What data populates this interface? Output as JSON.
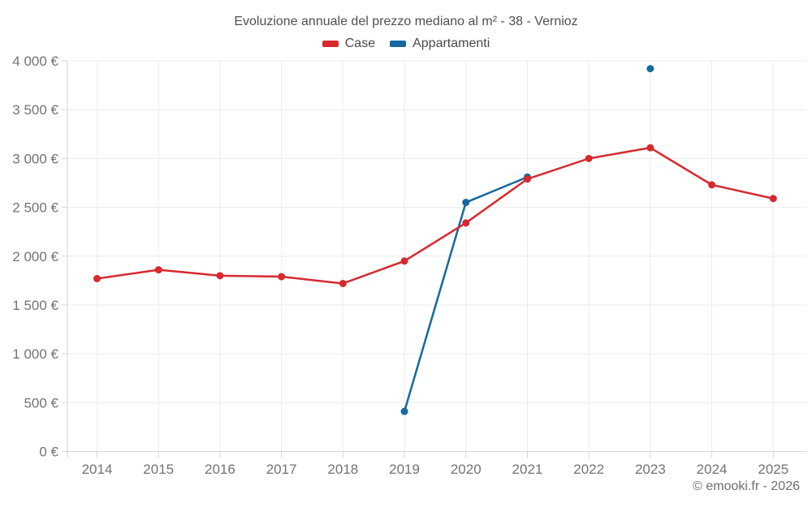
{
  "title": "Evoluzione annuale del prezzo mediano al m² - 38 - Vernioz",
  "footer": {
    "credit": "© emooki.fr - 2026"
  },
  "colors": {
    "grid": "#ececec",
    "axis": "#d6d6d6",
    "axis_label_text": "#737373",
    "title_text": "#4f4f4f",
    "legend_text": "#4a4a4a",
    "footer_text": "#6e6e6e",
    "background": "#ffffff"
  },
  "chart_data": {
    "type": "line",
    "title": "Evoluzione annuale del prezzo mediano al m² - 38 - Vernioz",
    "categories": [
      2014,
      2015,
      2016,
      2017,
      2018,
      2019,
      2020,
      2021,
      2022,
      2023,
      2024,
      2025
    ],
    "series": [
      {
        "name": "Case",
        "color": "#d7292f",
        "values": [
          1770,
          1860,
          1800,
          1790,
          1720,
          1950,
          2340,
          2790,
          3000,
          3110,
          2730,
          2590
        ]
      },
      {
        "name": "Appartamenti",
        "color": "#16689f",
        "values": [
          null,
          null,
          null,
          null,
          null,
          410,
          2550,
          2810,
          null,
          3920,
          null,
          null
        ]
      }
    ],
    "xlabel": "",
    "ylabel": "",
    "ylim": [
      0,
      4000
    ],
    "ytick_step": 500,
    "ytick_suffix": " €",
    "grid": true,
    "legend_position": "top"
  }
}
